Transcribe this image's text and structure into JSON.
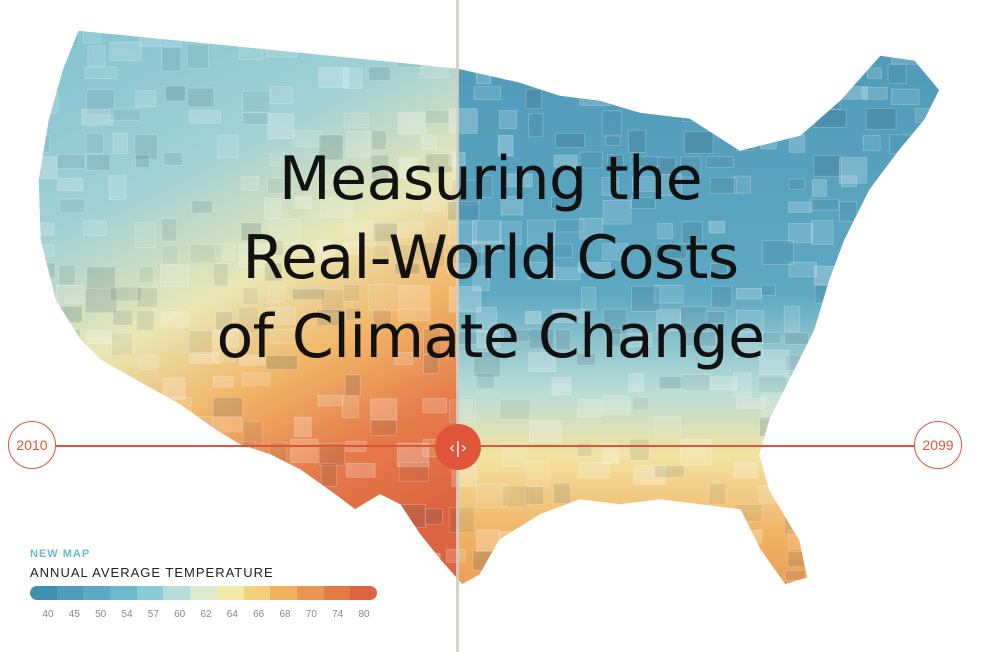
{
  "title_lines": [
    "Measuring the",
    "Real-World Costs",
    "of Climate Change"
  ],
  "slider": {
    "left_year": "2010",
    "right_year": "2099",
    "handle_icon": "left-right-arrows-icon",
    "handle_glyph": "‹|›",
    "accent": "#e0553a"
  },
  "legend": {
    "kicker": "NEW MAP",
    "title": "ANNUAL AVERAGE TEMPERATURE",
    "ticks": [
      "40",
      "45",
      "50",
      "54",
      "57",
      "60",
      "62",
      "64",
      "66",
      "68",
      "70",
      "74",
      "80"
    ],
    "colors": [
      "#3f8fb0",
      "#4f9cbb",
      "#5aa9c5",
      "#6bb7cc",
      "#8ccad6",
      "#b6dcdb",
      "#dcebcf",
      "#f1e9a5",
      "#f3d07a",
      "#f0b25e",
      "#ea9650",
      "#e47b44",
      "#dc6440"
    ]
  }
}
